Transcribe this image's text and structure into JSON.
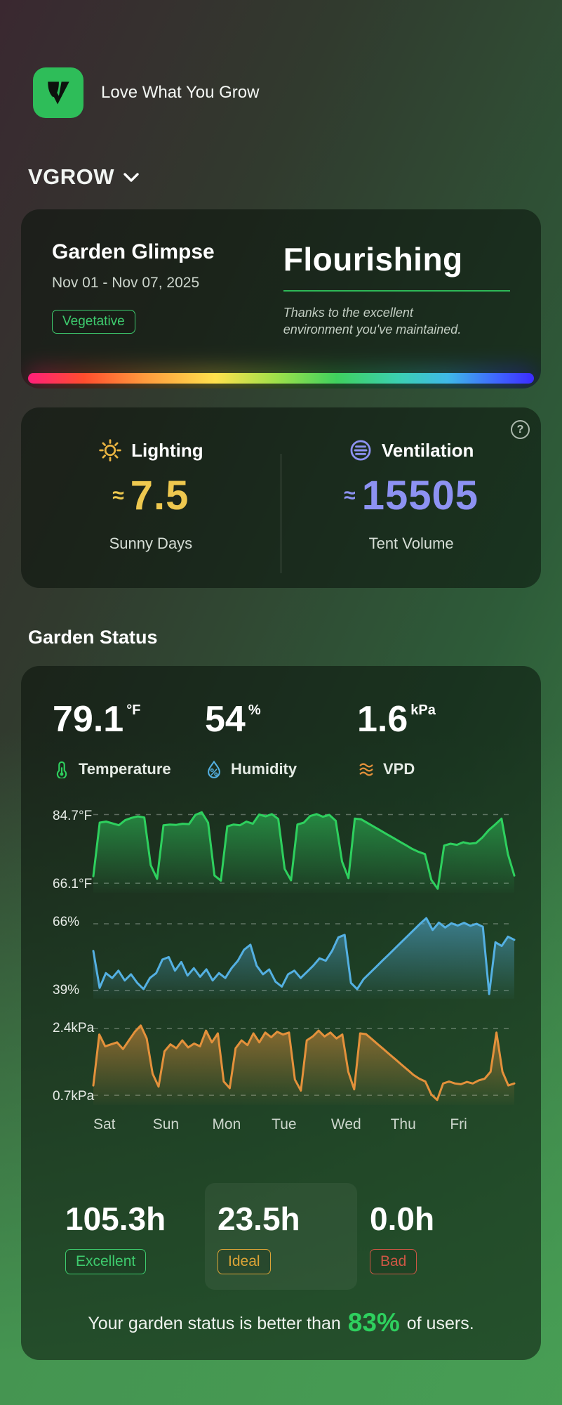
{
  "app": {
    "tagline": "Love What You Grow",
    "logo_color": "#2ebd59"
  },
  "header": {
    "title": "VGROW"
  },
  "glimpse_card": {
    "title": "Garden Glimpse",
    "date_range": "Nov 01 - Nov 07, 2025",
    "stage_badge": "Vegetative",
    "status_headline": "Flourishing",
    "status_note_line1": "Thanks to the excellent",
    "status_note_line2": "environment you've maintained."
  },
  "env_card": {
    "help_label": "?",
    "lighting": {
      "label": "Lighting",
      "approx": "≈",
      "value": "7.5",
      "caption": "Sunny Days",
      "accent": "#eec84f"
    },
    "ventilation": {
      "label": "Ventilation",
      "approx": "≈",
      "value": "15505",
      "caption": "Tent Volume",
      "accent": "#8d92f2"
    }
  },
  "garden_status": {
    "section_title": "Garden Status",
    "metrics": [
      {
        "value": "79.1",
        "unit": "°F",
        "label": "Temperature",
        "color": "#2ed05e"
      },
      {
        "value": "54",
        "unit": "%",
        "label": "Humidity",
        "color": "#54b0e2"
      },
      {
        "value": "1.6",
        "unit": "kPa",
        "label": "VPD",
        "color": "#e4913b"
      }
    ],
    "stats": [
      {
        "hours": "105.3h",
        "badge": "Excellent",
        "color": "#3ecb6e"
      },
      {
        "hours": "23.5h",
        "badge": "Ideal",
        "color": "#dca437"
      },
      {
        "hours": "0.0h",
        "badge": "Bad",
        "color": "#cd5745"
      }
    ],
    "percentile": {
      "prefix": "Your garden status is better than",
      "value": "83%",
      "suffix": "of users."
    }
  },
  "chart_data": {
    "type": "line",
    "x_categories": [
      "Sat",
      "Sun",
      "Mon",
      "Tue",
      "Wed",
      "Thu",
      "Fri"
    ],
    "panels": [
      {
        "name": "temperature",
        "unit": "°F",
        "color": "#2ed05e",
        "ylim": [
          63.5,
          86.5
        ],
        "gridlines": [
          84.7,
          66.1
        ],
        "labels": {
          "top": "84.7°F",
          "bottom": "66.1°F"
        },
        "values": [
          68,
          82.5,
          82.8,
          82.3,
          81.8,
          83.2,
          83.8,
          84.2,
          83.9,
          71,
          67.3,
          81.8,
          82,
          81.9,
          82.2,
          82.1,
          84.6,
          85.3,
          82.5,
          68.2,
          66.8,
          81.5,
          82,
          81.8,
          82.8,
          82.2,
          84.7,
          84.2,
          84.8,
          83.5,
          70,
          66.9,
          82,
          82.5,
          84.3,
          84.8,
          84.1,
          84.6,
          83,
          72,
          67.5,
          83.6,
          83.4,
          82.4,
          81.4,
          80.4,
          79.4,
          78.4,
          77.4,
          76.4,
          75.4,
          74.6,
          74,
          67,
          64.6,
          76.3,
          76.8,
          76.5,
          77.2,
          76.8,
          77,
          78.5,
          80.5,
          82,
          83.6,
          74,
          68.2
        ]
      },
      {
        "name": "humidity",
        "unit": "%",
        "color": "#54b0e2",
        "ylim": [
          35.5,
          70
        ],
        "gridlines": [
          66,
          39
        ],
        "labels": {
          "top": "66%",
          "bottom": "39%"
        },
        "values": [
          55,
          40,
          46,
          44,
          47,
          43,
          45.5,
          42,
          39.5,
          44,
          46,
          51.5,
          52.5,
          47,
          50.5,
          45,
          48,
          44.5,
          47.5,
          43,
          46,
          44,
          48,
          51,
          55.5,
          57.5,
          49,
          45.5,
          47.5,
          42.5,
          40.5,
          45.5,
          47,
          44,
          46.5,
          49,
          52,
          51,
          55,
          60.5,
          61.5,
          42,
          39.5,
          43.5,
          46,
          48.5,
          51,
          53.5,
          56,
          58.5,
          61,
          63.5,
          66,
          68.3,
          63.5,
          66.5,
          64.5,
          66.2,
          65.3,
          66.4,
          65.2,
          66,
          64.8,
          37.5,
          58.5,
          57,
          60.8,
          59.5
        ]
      },
      {
        "name": "vpd",
        "unit": "kPa",
        "color": "#e4913b",
        "ylim": [
          0.45,
          2.62
        ],
        "gridlines": [
          2.4,
          0.7
        ],
        "labels": {
          "top": "2.4kPa",
          "bottom": "0.7kPa"
        },
        "values": [
          0.95,
          2.25,
          1.95,
          2.0,
          2.05,
          1.88,
          2.1,
          2.32,
          2.48,
          2.15,
          1.25,
          0.92,
          1.82,
          2.0,
          1.9,
          2.1,
          1.92,
          2.02,
          1.95,
          2.35,
          2.05,
          2.28,
          1.05,
          0.88,
          1.9,
          2.1,
          1.98,
          2.28,
          2.05,
          2.3,
          2.18,
          2.32,
          2.25,
          2.3,
          1.1,
          0.82,
          2.1,
          2.2,
          2.35,
          2.2,
          2.3,
          2.15,
          2.25,
          1.3,
          0.85,
          2.28,
          2.26,
          2.13,
          2.0,
          1.87,
          1.74,
          1.61,
          1.48,
          1.35,
          1.22,
          1.12,
          1.05,
          0.72,
          0.58,
          1.0,
          1.05,
          1.0,
          0.98,
          1.04,
          1.0,
          1.08,
          1.12,
          1.3,
          2.3,
          1.3,
          0.95,
          1.0
        ]
      }
    ]
  }
}
